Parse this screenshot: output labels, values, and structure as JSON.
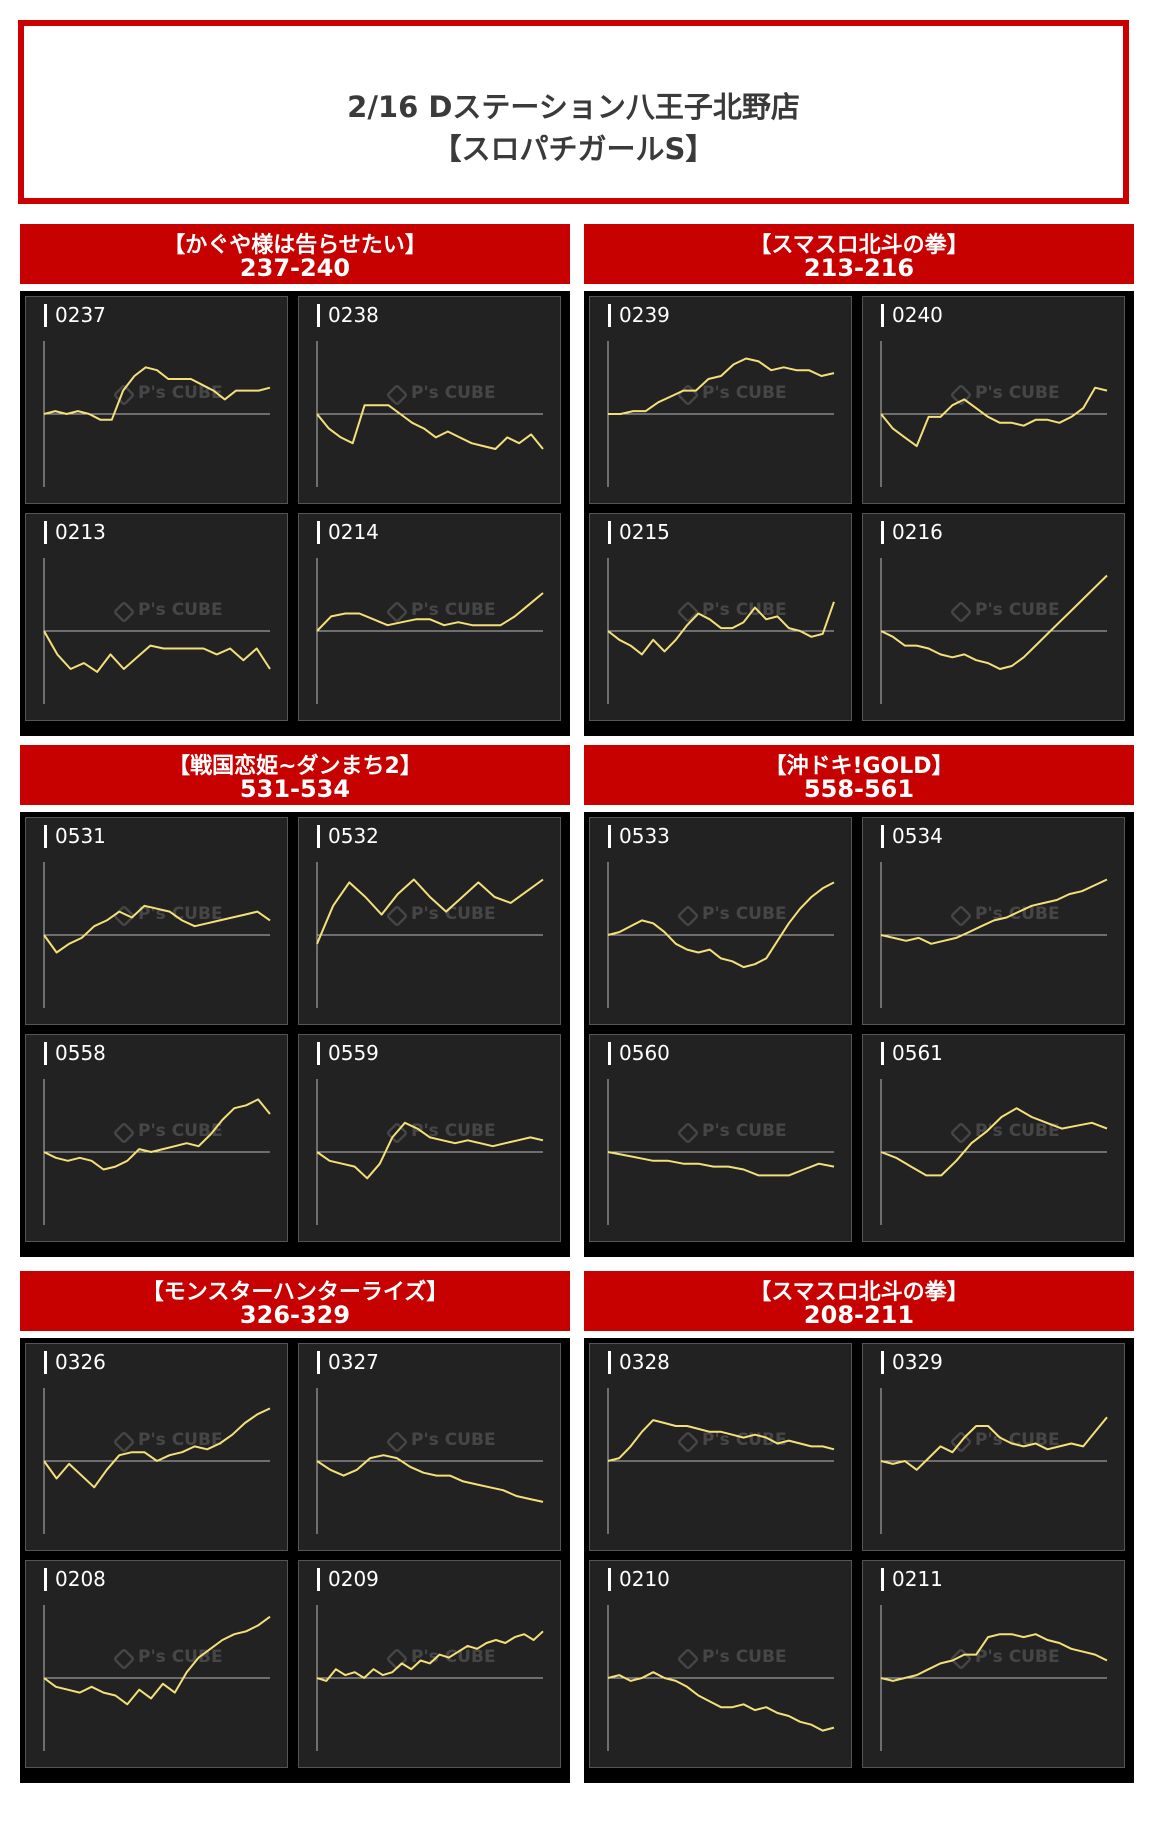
{
  "header": {
    "line1": "2/16 Dステーション八王子北野店",
    "line2": "【スロパチガールS】"
  },
  "watermark": "P's CUBE",
  "colors": {
    "band": "#c70000",
    "line": "#f3e07a",
    "panel": "#222222",
    "axis": "#bbbbbb"
  },
  "groups": [
    {
      "title": "【かぐや様は告らせたい】",
      "range": "237-240"
    },
    {
      "title": "【スマスロ北斗の拳】",
      "range": "213-216"
    },
    {
      "title": "【戦国恋姫~ダンまち2】",
      "range": "531-534"
    },
    {
      "title": "【沖ドキ!GOLD】",
      "range": "558-561"
    },
    {
      "title": "【モンスターハンターライズ】",
      "range": "326-329"
    },
    {
      "title": "【スマスロ北斗の拳】",
      "range": "208-211"
    }
  ],
  "chart_data": [
    {
      "type": "line",
      "label": "0237",
      "x": [
        0,
        1,
        2,
        3,
        4,
        5,
        6,
        7,
        8,
        9,
        10,
        11,
        12,
        13,
        14,
        15,
        16,
        17,
        18,
        19,
        20
      ],
      "values": [
        0,
        0.1,
        0,
        0.1,
        0,
        -0.2,
        -0.2,
        0.8,
        1.3,
        1.6,
        1.5,
        1.2,
        1.2,
        1.2,
        1.0,
        0.8,
        0.5,
        0.8,
        0.8,
        0.8,
        0.9
      ],
      "ylim": [
        -2.5,
        2.5
      ]
    },
    {
      "type": "line",
      "label": "0238",
      "x": [
        0,
        1,
        2,
        3,
        4,
        5,
        6,
        7,
        8,
        9,
        10,
        11,
        12,
        13,
        14,
        15,
        16,
        17,
        18,
        19
      ],
      "values": [
        0,
        -0.5,
        -0.8,
        -1.0,
        0.3,
        0.3,
        0.3,
        0,
        -0.3,
        -0.5,
        -0.8,
        -0.6,
        -0.8,
        -1.0,
        -1.1,
        -1.2,
        -0.8,
        -1.0,
        -0.7,
        -1.2
      ],
      "ylim": [
        -2.5,
        2.5
      ]
    },
    {
      "type": "line",
      "label": "0213",
      "x": [
        0,
        1,
        2,
        3,
        4,
        5,
        6,
        7,
        8,
        9,
        10,
        11,
        12,
        13,
        14,
        15,
        16,
        17
      ],
      "values": [
        0,
        -0.8,
        -1.3,
        -1.1,
        -1.4,
        -0.8,
        -1.3,
        -0.9,
        -0.5,
        -0.6,
        -0.6,
        -0.6,
        -0.6,
        -0.8,
        -0.6,
        -1.0,
        -0.6,
        -1.3
      ],
      "ylim": [
        -2.5,
        2.5
      ]
    },
    {
      "type": "line",
      "label": "0214",
      "x": [
        0,
        1,
        2,
        3,
        4,
        5,
        6,
        7,
        8,
        9,
        10,
        11,
        12,
        13,
        14,
        15,
        16
      ],
      "values": [
        0,
        0.5,
        0.6,
        0.6,
        0.4,
        0.2,
        0.3,
        0.4,
        0.4,
        0.2,
        0.3,
        0.2,
        0.2,
        0.2,
        0.5,
        0.9,
        1.3
      ],
      "ylim": [
        -2.5,
        2.5
      ]
    },
    {
      "type": "line",
      "label": "0239",
      "x": [
        0,
        1,
        2,
        3,
        4,
        5,
        6,
        7,
        8,
        9,
        10,
        11,
        12,
        13,
        14,
        15,
        16,
        17,
        18
      ],
      "values": [
        0,
        0,
        0.1,
        0.1,
        0.4,
        0.6,
        0.8,
        0.8,
        1.2,
        1.3,
        1.7,
        1.9,
        1.8,
        1.5,
        1.6,
        1.5,
        1.5,
        1.3,
        1.4
      ],
      "ylim": [
        -2.5,
        2.5
      ]
    },
    {
      "type": "line",
      "label": "0240",
      "x": [
        0,
        1,
        2,
        3,
        4,
        5,
        6,
        7,
        8,
        9,
        10,
        11,
        12,
        13,
        14,
        15,
        16,
        17,
        18,
        19
      ],
      "values": [
        0,
        -0.5,
        -0.8,
        -1.1,
        -0.1,
        -0.1,
        0.3,
        0.5,
        0.2,
        -0.1,
        -0.3,
        -0.3,
        -0.4,
        -0.2,
        -0.2,
        -0.3,
        -0.1,
        0.2,
        0.9,
        0.8
      ],
      "ylim": [
        -2.5,
        2.5
      ]
    },
    {
      "type": "line",
      "label": "0215",
      "x": [
        0,
        1,
        2,
        3,
        4,
        5,
        6,
        7,
        8,
        9,
        10,
        11,
        12,
        13,
        14,
        15,
        16,
        17,
        18,
        19,
        20
      ],
      "values": [
        0,
        -0.3,
        -0.5,
        -0.8,
        -0.3,
        -0.7,
        -0.3,
        0.2,
        0.6,
        0.4,
        0.1,
        0.1,
        0.3,
        0.8,
        0.4,
        0.5,
        0.1,
        0,
        -0.2,
        -0.1,
        1.0
      ],
      "ylim": [
        -2.5,
        2.5
      ]
    },
    {
      "type": "line",
      "label": "0216",
      "x": [
        0,
        1,
        2,
        3,
        4,
        5,
        6,
        7,
        8,
        9,
        10,
        11,
        12,
        13,
        14,
        15,
        16,
        17,
        18,
        19
      ],
      "values": [
        0,
        -0.2,
        -0.5,
        -0.5,
        -0.6,
        -0.8,
        -0.9,
        -0.8,
        -1.0,
        -1.1,
        -1.3,
        -1.2,
        -0.9,
        -0.5,
        -0.1,
        0.3,
        0.7,
        1.1,
        1.5,
        1.9
      ],
      "ylim": [
        -2.5,
        2.5
      ]
    },
    {
      "type": "line",
      "label": "0531",
      "x": [
        0,
        1,
        2,
        3,
        4,
        5,
        6,
        7,
        8,
        9,
        10,
        11,
        12,
        13,
        14,
        15,
        16,
        17,
        18
      ],
      "values": [
        0,
        -0.6,
        -0.3,
        -0.1,
        0.3,
        0.5,
        0.8,
        0.6,
        1.0,
        0.9,
        0.8,
        0.5,
        0.3,
        0.4,
        0.5,
        0.6,
        0.7,
        0.8,
        0.5
      ],
      "ylim": [
        -2.5,
        2.5
      ]
    },
    {
      "type": "line",
      "label": "0532",
      "x": [
        0,
        1,
        2,
        3,
        4,
        5,
        6,
        7,
        8,
        9,
        10,
        11,
        12,
        13,
        14
      ],
      "values": [
        -0.3,
        1.0,
        1.8,
        1.3,
        0.7,
        1.4,
        1.9,
        1.3,
        0.8,
        1.3,
        1.8,
        1.3,
        1.1,
        1.5,
        1.9
      ],
      "ylim": [
        -2.5,
        2.5
      ]
    },
    {
      "type": "line",
      "label": "0558",
      "x": [
        0,
        1,
        2,
        3,
        4,
        5,
        6,
        7,
        8,
        9,
        10,
        11,
        12,
        13,
        14,
        15,
        16,
        17,
        18,
        19
      ],
      "values": [
        0,
        -0.2,
        -0.3,
        -0.2,
        -0.3,
        -0.6,
        -0.5,
        -0.3,
        0.1,
        0.0,
        0.1,
        0.2,
        0.3,
        0.2,
        0.6,
        1.1,
        1.5,
        1.6,
        1.8,
        1.3
      ],
      "ylim": [
        -2.5,
        2.5
      ]
    },
    {
      "type": "line",
      "label": "0559",
      "x": [
        0,
        1,
        2,
        3,
        4,
        5,
        6,
        7,
        8,
        9,
        10,
        11,
        12,
        13,
        14,
        15,
        16,
        17,
        18
      ],
      "values": [
        0,
        -0.3,
        -0.4,
        -0.5,
        -0.9,
        -0.4,
        0.5,
        1.0,
        0.8,
        0.5,
        0.4,
        0.3,
        0.4,
        0.3,
        0.2,
        0.3,
        0.4,
        0.5,
        0.4
      ],
      "ylim": [
        -2.5,
        2.5
      ]
    },
    {
      "type": "line",
      "label": "0533",
      "x": [
        0,
        1,
        2,
        3,
        4,
        5,
        6,
        7,
        8,
        9,
        10,
        11,
        12,
        13,
        14,
        15,
        16,
        17,
        18,
        19,
        20
      ],
      "values": [
        0,
        0.1,
        0.3,
        0.5,
        0.4,
        0.1,
        -0.3,
        -0.5,
        -0.6,
        -0.5,
        -0.8,
        -0.9,
        -1.1,
        -1.0,
        -0.8,
        -0.2,
        0.4,
        0.9,
        1.3,
        1.6,
        1.8
      ],
      "ylim": [
        -2.5,
        2.5
      ]
    },
    {
      "type": "line",
      "label": "0534",
      "x": [
        0,
        1,
        2,
        3,
        4,
        5,
        6,
        7,
        8,
        9,
        10,
        11,
        12,
        13,
        14,
        15,
        16,
        17,
        18
      ],
      "values": [
        0,
        -0.1,
        -0.2,
        -0.1,
        -0.3,
        -0.2,
        -0.1,
        0.1,
        0.3,
        0.5,
        0.6,
        0.8,
        1.0,
        1.1,
        1.2,
        1.4,
        1.5,
        1.7,
        1.9
      ],
      "ylim": [
        -2.5,
        2.5
      ]
    },
    {
      "type": "line",
      "label": "0560",
      "x": [
        0,
        1,
        2,
        3,
        4,
        5,
        6,
        7,
        8,
        9,
        10,
        11,
        12,
        13,
        14,
        15
      ],
      "values": [
        0,
        -0.1,
        -0.2,
        -0.3,
        -0.3,
        -0.4,
        -0.4,
        -0.5,
        -0.5,
        -0.6,
        -0.8,
        -0.8,
        -0.8,
        -0.6,
        -0.4,
        -0.5
      ],
      "ylim": [
        -2.5,
        2.5
      ]
    },
    {
      "type": "line",
      "label": "0561",
      "x": [
        0,
        1,
        2,
        3,
        4,
        5,
        6,
        7,
        8,
        9,
        10,
        11,
        12,
        13,
        14,
        15
      ],
      "values": [
        0,
        -0.2,
        -0.5,
        -0.8,
        -0.8,
        -0.3,
        0.3,
        0.7,
        1.2,
        1.5,
        1.2,
        1.0,
        0.8,
        0.9,
        1.0,
        0.8
      ],
      "ylim": [
        -2.5,
        2.5
      ]
    },
    {
      "type": "line",
      "label": "0326",
      "x": [
        0,
        1,
        2,
        3,
        4,
        5,
        6,
        7,
        8,
        9,
        10,
        11,
        12,
        13,
        14,
        15,
        16,
        17,
        18
      ],
      "values": [
        0,
        -0.6,
        -0.1,
        -0.5,
        -0.9,
        -0.3,
        0.2,
        0.3,
        0.3,
        0.0,
        0.2,
        0.3,
        0.5,
        0.4,
        0.6,
        0.9,
        1.3,
        1.6,
        1.8
      ],
      "ylim": [
        -2.5,
        2.5
      ]
    },
    {
      "type": "line",
      "label": "0327",
      "x": [
        0,
        1,
        2,
        3,
        4,
        5,
        6,
        7,
        8,
        9,
        10,
        11,
        12,
        13,
        14,
        15,
        16,
        17
      ],
      "values": [
        0,
        -0.3,
        -0.5,
        -0.3,
        0.1,
        0.2,
        0.1,
        -0.2,
        -0.4,
        -0.5,
        -0.5,
        -0.7,
        -0.8,
        -0.9,
        -1.0,
        -1.2,
        -1.3,
        -1.4
      ],
      "ylim": [
        -2.5,
        2.5
      ]
    },
    {
      "type": "line",
      "label": "0208",
      "x": [
        0,
        1,
        2,
        3,
        4,
        5,
        6,
        7,
        8,
        9,
        10,
        11,
        12,
        13,
        14,
        15,
        16,
        17,
        18,
        19
      ],
      "values": [
        0,
        -0.3,
        -0.4,
        -0.5,
        -0.3,
        -0.5,
        -0.6,
        -0.9,
        -0.4,
        -0.7,
        -0.2,
        -0.5,
        0.2,
        0.7,
        1.0,
        1.3,
        1.5,
        1.6,
        1.8,
        2.1
      ],
      "ylim": [
        -2.5,
        2.5
      ]
    },
    {
      "type": "line",
      "label": "0209",
      "x": [
        0,
        1,
        2,
        3,
        4,
        5,
        6,
        7,
        8,
        9,
        10,
        11,
        12,
        13,
        14,
        15,
        16,
        17,
        18,
        19,
        20,
        21,
        22,
        23,
        24
      ],
      "values": [
        0,
        -0.1,
        0.3,
        0.1,
        0.2,
        0.0,
        0.3,
        0.1,
        0.2,
        0.5,
        0.3,
        0.6,
        0.5,
        0.8,
        0.7,
        0.9,
        1.1,
        1.0,
        1.2,
        1.3,
        1.2,
        1.4,
        1.5,
        1.3,
        1.6
      ],
      "ylim": [
        -2.5,
        2.5
      ]
    },
    {
      "type": "line",
      "label": "0328",
      "x": [
        0,
        1,
        2,
        3,
        4,
        5,
        6,
        7,
        8,
        9,
        10,
        11,
        12,
        13,
        14,
        15,
        16,
        17,
        18,
        19,
        20
      ],
      "values": [
        0,
        0.1,
        0.5,
        1.0,
        1.4,
        1.3,
        1.2,
        1.2,
        1.1,
        1.0,
        1.0,
        0.9,
        0.8,
        0.9,
        0.8,
        0.6,
        0.7,
        0.6,
        0.5,
        0.5,
        0.4
      ],
      "ylim": [
        -2.5,
        2.5
      ]
    },
    {
      "type": "line",
      "label": "0329",
      "x": [
        0,
        1,
        2,
        3,
        4,
        5,
        6,
        7,
        8,
        9,
        10,
        11,
        12,
        13,
        14,
        15,
        16,
        17,
        18,
        19
      ],
      "values": [
        0,
        -0.1,
        0.0,
        -0.3,
        0.1,
        0.5,
        0.3,
        0.8,
        1.2,
        1.2,
        0.8,
        0.6,
        0.5,
        0.6,
        0.4,
        0.5,
        0.6,
        0.5,
        1.0,
        1.5
      ],
      "ylim": [
        -2.5,
        2.5
      ]
    },
    {
      "type": "line",
      "label": "0210",
      "x": [
        0,
        1,
        2,
        3,
        4,
        5,
        6,
        7,
        8,
        9,
        10,
        11,
        12,
        13,
        14,
        15,
        16,
        17,
        18,
        19,
        20
      ],
      "values": [
        0,
        0.1,
        -0.1,
        0.0,
        0.2,
        0.0,
        -0.1,
        -0.3,
        -0.6,
        -0.8,
        -1.0,
        -1.0,
        -0.9,
        -1.1,
        -1.0,
        -1.2,
        -1.3,
        -1.5,
        -1.6,
        -1.8,
        -1.7
      ],
      "ylim": [
        -2.5,
        2.5
      ]
    },
    {
      "type": "line",
      "label": "0211",
      "x": [
        0,
        1,
        2,
        3,
        4,
        5,
        6,
        7,
        8,
        9,
        10,
        11,
        12,
        13,
        14,
        15,
        16,
        17,
        18,
        19
      ],
      "values": [
        0,
        -0.1,
        0.0,
        0.1,
        0.3,
        0.5,
        0.6,
        0.8,
        0.8,
        1.4,
        1.5,
        1.5,
        1.4,
        1.5,
        1.3,
        1.2,
        1.0,
        0.9,
        0.8,
        0.6
      ],
      "ylim": [
        -2.5,
        2.5
      ]
    }
  ]
}
